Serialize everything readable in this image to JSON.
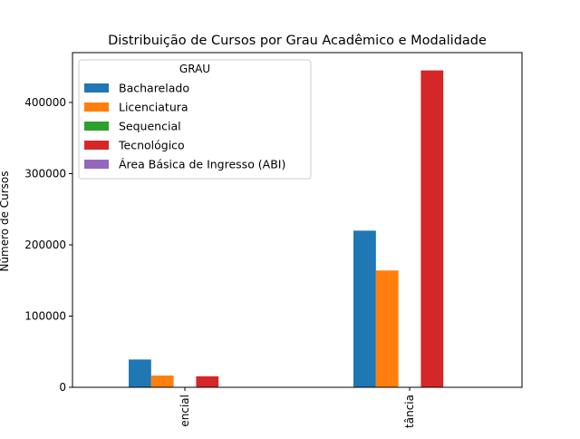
{
  "chart_data": {
    "type": "bar",
    "title": "Distribuição de Cursos por Grau Acadêmico e Modalidade",
    "xlabel": "",
    "ylabel": "Número de Cursos",
    "categories": [
      "encial",
      "tância"
    ],
    "ylim": [
      0,
      470000
    ],
    "yticks": [
      0,
      100000,
      200000,
      300000,
      400000
    ],
    "ytick_labels": [
      "0",
      "100000",
      "200000",
      "300000",
      "400000"
    ],
    "grid": false,
    "legend": {
      "title": "GRAU",
      "placement": "top-left"
    },
    "series": [
      {
        "name": "Bacharelado",
        "color": "#1f77b4",
        "values": [
          39000,
          220000
        ]
      },
      {
        "name": "Licenciatura",
        "color": "#ff7f0e",
        "values": [
          16500,
          164000
        ]
      },
      {
        "name": "Sequencial",
        "color": "#2ca02c",
        "values": [
          0,
          0
        ]
      },
      {
        "name": "Tecnológico",
        "color": "#d62728",
        "values": [
          15500,
          445000
        ]
      },
      {
        "name": "Área Básica de Ingresso (ABI)",
        "color": "#9467bd",
        "values": [
          0,
          0
        ]
      }
    ]
  }
}
